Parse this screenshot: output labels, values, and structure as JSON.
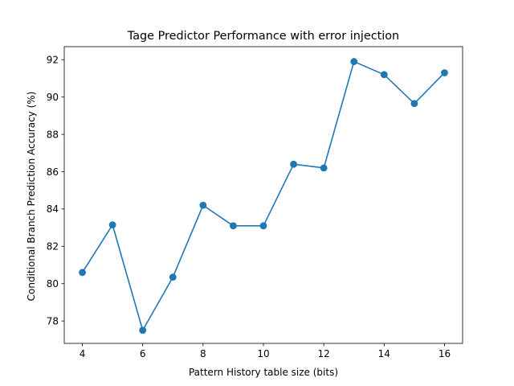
{
  "chart_data": {
    "type": "line",
    "title": "Tage Predictor Performance with error injection",
    "xlabel": "Pattern History table size (bits)",
    "ylabel": "Conditional Branch Prediction Accuracy (%)",
    "x": [
      4,
      5,
      6,
      7,
      8,
      9,
      10,
      11,
      12,
      13,
      14,
      15,
      16
    ],
    "series": [
      {
        "values": [
          80.6,
          83.15,
          77.5,
          80.35,
          84.2,
          83.1,
          83.1,
          86.4,
          86.2,
          91.9,
          91.2,
          89.65,
          91.3
        ],
        "color": "#1f77b4",
        "marker": "circle"
      }
    ],
    "xlim": [
      3.4,
      16.6
    ],
    "ylim": [
      76.8,
      92.7
    ],
    "xticks": [
      4,
      6,
      8,
      10,
      12,
      14,
      16
    ],
    "yticks": [
      78,
      80,
      82,
      84,
      86,
      88,
      90,
      92
    ],
    "grid": false,
    "legend": "none"
  }
}
